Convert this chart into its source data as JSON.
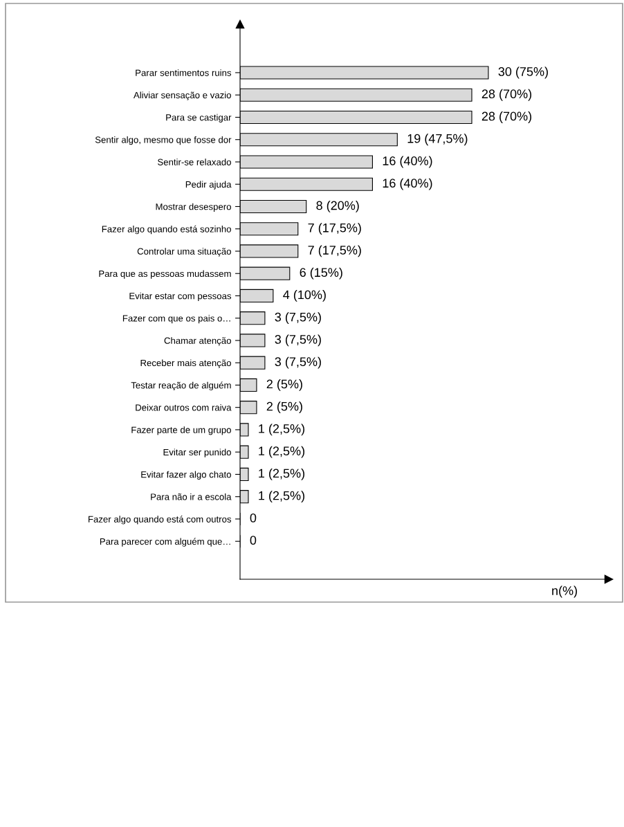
{
  "chart_data": {
    "type": "bar",
    "orientation": "horizontal",
    "annotations": [
      "n(%)"
    ],
    "categories": [
      "Parar sentimentos ruins",
      "Aliviar sensação e vazio",
      "Para se castigar",
      "Sentir algo, mesmo que fosse dor",
      "Sentir-se relaxado",
      "Pedir ajuda",
      "Mostrar desespero",
      "Fazer algo quando está sozinho",
      "Controlar uma situação",
      "Para que as pessoas mudassem",
      "Evitar estar com pessoas",
      "Fazer com que os pais o…",
      "Chamar atenção",
      "Receber mais atenção",
      "Testar reação de alguém",
      "Deixar outros com raiva",
      "Fazer parte de um grupo",
      "Evitar ser punido",
      "Evitar fazer algo chato",
      "Para não ir a escola",
      "Fazer algo quando está com outros",
      "Para parecer com alguém que…"
    ],
    "values": [
      30,
      28,
      28,
      19,
      16,
      16,
      8,
      7,
      7,
      6,
      4,
      3,
      3,
      3,
      2,
      2,
      1,
      1,
      1,
      1,
      0,
      0
    ],
    "value_labels": [
      "30 (75%)",
      "28 (70%)",
      "28 (70%)",
      "19 (47,5%)",
      "16 (40%)",
      "16 (40%)",
      "8 (20%)",
      "7 (17,5%)",
      "7 (17,5%)",
      "6 (15%)",
      "4 (10%)",
      "3 (7,5%)",
      "3 (7,5%)",
      "3 (7,5%)",
      "2 (5%)",
      "2 (5%)",
      "1 (2,5%)",
      "1 (2,5%)",
      "1 (2,5%)",
      "1 (2,5%)",
      "0",
      "0"
    ],
    "color": "#d9d9d9",
    "tick_labels": "y",
    "grid": false
  }
}
